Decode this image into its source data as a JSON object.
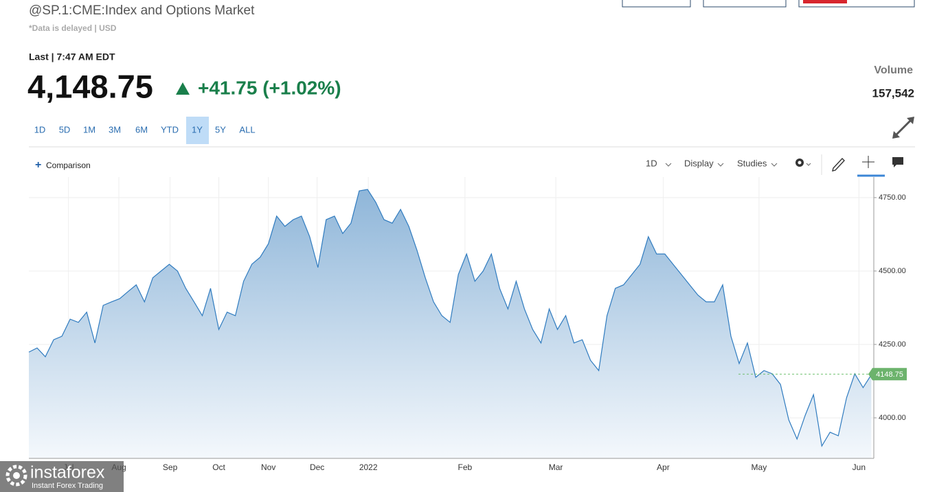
{
  "header": {
    "title": "@SP.1:CME:Index and Options Market",
    "note": "*Data is delayed | USD",
    "last_label": "Last | 7:47 AM EDT",
    "price": "4,148.75",
    "change": "+41.75 (+1.02%)",
    "volume_label": "Volume",
    "volume": "157,542"
  },
  "ranges": [
    "1D",
    "5D",
    "1M",
    "3M",
    "6M",
    "YTD",
    "1Y",
    "5Y",
    "ALL"
  ],
  "selected_range": 6,
  "toolbar": {
    "comparison": "Comparison",
    "interval": "1D",
    "display": "Display",
    "studies": "Studies"
  },
  "watermark": {
    "brand": "instaforex",
    "tagline": "Instant Forex Trading"
  },
  "chart_data": {
    "type": "area",
    "color": "#2f7bbf",
    "values": [
      4224,
      4238,
      4208,
      4266,
      4278,
      4336,
      4325,
      4360,
      4255,
      4383,
      4395,
      4406,
      4430,
      4453,
      4395,
      4477,
      4500,
      4523,
      4500,
      4441,
      4395,
      4348,
      4441,
      4301,
      4360,
      4348,
      4465,
      4523,
      4547,
      4593,
      4687,
      4652,
      4675,
      4687,
      4617,
      4512,
      4675,
      4687,
      4628,
      4663,
      4773,
      4778,
      4734,
      4675,
      4663,
      4710,
      4652,
      4570,
      4477,
      4395,
      4348,
      4325,
      4488,
      4558,
      4465,
      4500,
      4558,
      4441,
      4371,
      4465,
      4371,
      4301,
      4255,
      4371,
      4301,
      4348,
      4255,
      4266,
      4196,
      4161,
      4348,
      4441,
      4453,
      4488,
      4523,
      4617,
      4558,
      4558,
      4523,
      4488,
      4453,
      4418,
      4395,
      4395,
      4453,
      4278,
      4185,
      4255,
      4138,
      4161,
      4150,
      4114,
      3993,
      3928,
      4009,
      4079,
      3904,
      3951,
      3939,
      4068,
      4150,
      4103,
      4147
    ],
    "xlim": [
      0,
      102.3
    ],
    "xticks": [
      {
        "value": 4.8,
        "label": "Jul"
      },
      {
        "value": 10.9,
        "label": "Aug"
      },
      {
        "value": 17.1,
        "label": "Sep"
      },
      {
        "value": 23,
        "label": "Oct"
      },
      {
        "value": 29,
        "label": "Nov"
      },
      {
        "value": 34.9,
        "label": "Dec"
      },
      {
        "value": 41.1,
        "label": "2022"
      },
      {
        "value": 52.8,
        "label": "Feb"
      },
      {
        "value": 63.8,
        "label": "Mar"
      },
      {
        "value": 76.8,
        "label": "Apr"
      },
      {
        "value": 88.4,
        "label": "May"
      },
      {
        "value": 100.5,
        "label": "Jun"
      }
    ],
    "ylim": [
      3862,
      4820
    ],
    "yticks": [
      {
        "value": 4000,
        "label": "4000.00"
      },
      {
        "value": 4250,
        "label": "4250.00"
      },
      {
        "value": 4500,
        "label": "4500.00"
      },
      {
        "value": 4750,
        "label": "4750.00"
      }
    ],
    "grid": true,
    "last": 4148.75
  }
}
